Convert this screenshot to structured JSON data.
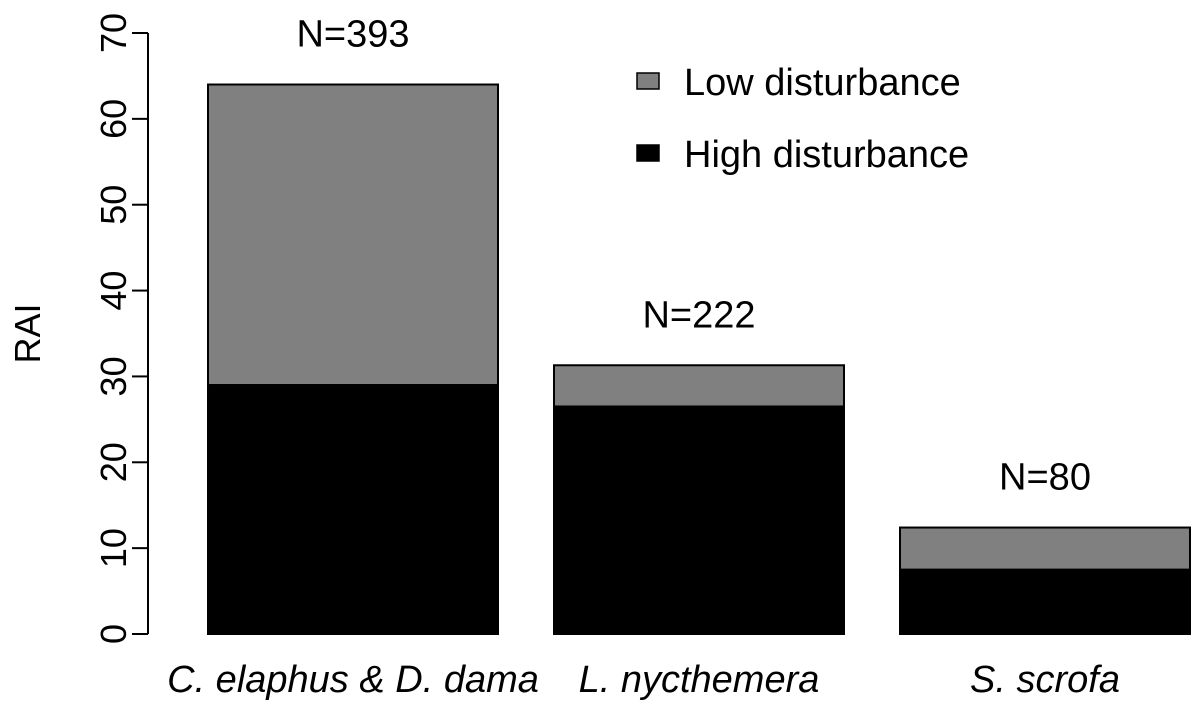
{
  "chart_data": {
    "type": "bar",
    "stacked": true,
    "title": "",
    "xlabel": "",
    "ylabel": "RAI",
    "ylim": [
      0,
      70
    ],
    "yticks": [
      0,
      10,
      20,
      30,
      40,
      50,
      60,
      70
    ],
    "categories": [
      "C. elaphus & D. dama",
      "L. nycthemera",
      "S. scrofa"
    ],
    "series": [
      {
        "name": "High disturbance",
        "color": "#000000",
        "values": [
          29,
          26.5,
          7.5
        ]
      },
      {
        "name": "Low disturbance",
        "color": "#808080",
        "values": [
          35,
          4.8,
          4.9
        ]
      }
    ],
    "annotations": [
      "N=393",
      "N=222",
      "N=80"
    ],
    "legend": {
      "position": "top-right",
      "entries": [
        "Low disturbance",
        "High disturbance"
      ]
    },
    "grid": false
  }
}
